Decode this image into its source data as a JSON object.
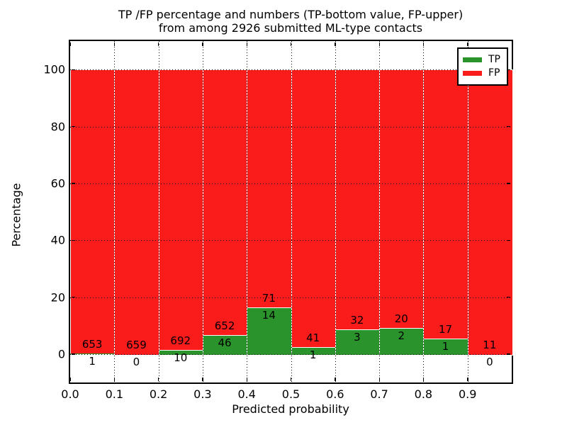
{
  "title": {
    "line1": "TP /FP percentage and numbers (TP-bottom value, FP-upper)",
    "line2": "from among 2926 submitted ML-type contacts"
  },
  "axes": {
    "xlabel": "Predicted probability",
    "ylabel": "Percentage",
    "x_tick_labels": [
      "0.0",
      "0.1",
      "0.2",
      "0.3",
      "0.4",
      "0.5",
      "0.6",
      "0.7",
      "0.8",
      "0.9"
    ],
    "x_tick_values": [
      0.0,
      0.1,
      0.2,
      0.3,
      0.4,
      0.5,
      0.6,
      0.7,
      0.8,
      0.9
    ],
    "y_tick_labels": [
      "0",
      "20",
      "40",
      "60",
      "80",
      "100"
    ],
    "y_tick_values": [
      0,
      20,
      40,
      60,
      80,
      100
    ],
    "grid": "dotted"
  },
  "legend": {
    "position": "upper-right",
    "entries": [
      {
        "label": "TP",
        "color": "#2b932b"
      },
      {
        "label": "FP",
        "color": "#fa1b1b"
      }
    ]
  },
  "colors": {
    "tp": "#2b932b",
    "fp": "#fa1b1b",
    "bar_edge": "#ffffff",
    "axis": "#000000",
    "background": "#ffffff"
  },
  "chart_data": {
    "type": "bar",
    "subtype": "stacked-percentage-histogram",
    "title": "TP /FP percentage and numbers (TP-bottom value, FP-upper) from among 2926 submitted ML-type contacts",
    "xlabel": "Predicted probability",
    "ylabel": "Percentage",
    "xlim": [
      0.0,
      1.0
    ],
    "ylim": [
      -10,
      110
    ],
    "bin_width": 0.1,
    "total_contacts": 2926,
    "categories": [
      "0.0-0.1",
      "0.1-0.2",
      "0.2-0.3",
      "0.3-0.4",
      "0.4-0.5",
      "0.5-0.6",
      "0.6-0.7",
      "0.7-0.8",
      "0.8-0.9",
      "0.9-1.0"
    ],
    "bin_starts": [
      0.0,
      0.1,
      0.2,
      0.3,
      0.4,
      0.5,
      0.6,
      0.7,
      0.8,
      0.9
    ],
    "series": [
      {
        "name": "TP",
        "role": "bottom-count",
        "values": [
          1,
          0,
          10,
          46,
          14,
          1,
          3,
          2,
          1,
          0
        ]
      },
      {
        "name": "FP",
        "role": "upper-count",
        "values": [
          653,
          659,
          692,
          652,
          71,
          41,
          32,
          20,
          17,
          11
        ]
      }
    ],
    "note": "Each bin shows stacked percentages: green TP% = TP/(TP+FP)*100 from 0 up, red FP% fills to 100. Numeric labels show raw counts: FP above the green top, TP below it."
  }
}
